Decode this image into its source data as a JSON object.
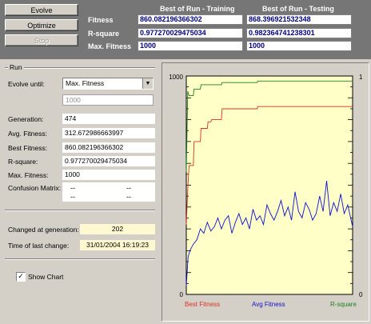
{
  "toolbar": {
    "evolve": "Evolve",
    "optimize": "Optimize",
    "stop": "Stop"
  },
  "best_of_run": {
    "training_header": "Best of Run - Training",
    "testing_header": "Best of Run - Testing",
    "rows": [
      {
        "label": "Fitness",
        "training": "860.082196366302",
        "testing": "868.396921532348"
      },
      {
        "label": "R-square",
        "training": "0.977270029475034",
        "testing": "0.982364741238301"
      },
      {
        "label": "Max. Fitness",
        "training": "1000",
        "testing": "1000"
      }
    ]
  },
  "run": {
    "group_title": "Run",
    "evolve_until_label": "Evolve until:",
    "evolve_until_value": "Max. Fitness",
    "evolve_until_target": "1000",
    "generation_label": "Generation:",
    "generation": "474",
    "avg_fitness_label": "Avg. Fitness:",
    "avg_fitness": "312.672986663997",
    "best_fitness_label": "Best Fitness:",
    "best_fitness": "860.082196366302",
    "r_square_label": "R-square:",
    "r_square": "0.977270029475034",
    "max_fitness_label": "Max. Fitness:",
    "max_fitness": "1000",
    "confusion_label": "Confusion Matrix:",
    "confusion": [
      "--",
      "--",
      "--",
      "--"
    ],
    "changed_label": "Changed at generation:",
    "changed_at": "202",
    "time_label": "Time of last change:",
    "time_of_change": "31/01/2004 16:19:23",
    "show_chart_label": "Show Chart"
  },
  "colors": {
    "best_fitness": "#e03020",
    "avg_fitness": "#1010d0",
    "r_square": "#208020",
    "plot_bg": "#ffffc8"
  },
  "chart_data": {
    "type": "line",
    "xlim": [
      0,
      474
    ],
    "ylim_left": [
      0,
      1000
    ],
    "ylim_right": [
      0,
      1
    ],
    "left_tick_labels": [
      "1000",
      "0"
    ],
    "right_tick_labels": [
      "1",
      "0"
    ],
    "legend_placement": "bottom",
    "series": [
      {
        "name": "Best Fitness",
        "axis": "left",
        "x": [
          0,
          4,
          8,
          20,
          22,
          40,
          42,
          60,
          62,
          70,
          72,
          100,
          102,
          202,
          204,
          474
        ],
        "values": [
          320,
          480,
          590,
          590,
          700,
          700,
          760,
          760,
          790,
          790,
          800,
          800,
          850,
          850,
          860,
          860
        ]
      },
      {
        "name": "Avg Fitness",
        "axis": "left",
        "x": [
          0,
          5,
          10,
          20,
          30,
          40,
          50,
          60,
          70,
          80,
          90,
          100,
          110,
          120,
          130,
          140,
          150,
          160,
          170,
          180,
          190,
          200,
          210,
          220,
          230,
          240,
          250,
          260,
          270,
          280,
          290,
          300,
          310,
          320,
          330,
          340,
          350,
          360,
          370,
          380,
          390,
          400,
          410,
          420,
          430,
          440,
          450,
          460,
          474
        ],
        "values": [
          40,
          170,
          200,
          230,
          250,
          300,
          280,
          330,
          290,
          310,
          350,
          300,
          340,
          360,
          280,
          330,
          370,
          320,
          350,
          300,
          390,
          340,
          360,
          320,
          410,
          370,
          340,
          380,
          430,
          360,
          400,
          340,
          470,
          380,
          350,
          420,
          390,
          340,
          370,
          450,
          380,
          520,
          360,
          420,
          380,
          460,
          370,
          410,
          310
        ]
      },
      {
        "name": "R-square",
        "axis": "right",
        "x": [
          0,
          4,
          8,
          20,
          22,
          40,
          42,
          100,
          102,
          202,
          204,
          474
        ],
        "values": [
          0.56,
          0.93,
          0.91,
          0.91,
          0.94,
          0.94,
          0.96,
          0.96,
          0.97,
          0.97,
          0.977,
          0.977
        ]
      }
    ]
  }
}
